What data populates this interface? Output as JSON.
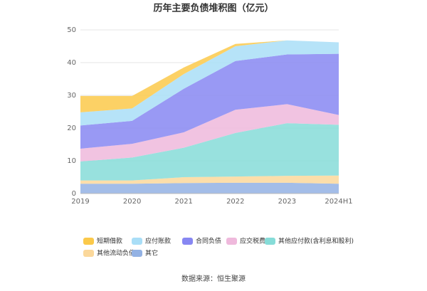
{
  "chart_data": {
    "type": "stacked-area",
    "title": "历年主要负债堆积图（亿元）",
    "categories": [
      "2019",
      "2020",
      "2021",
      "2022",
      "2023",
      "2024H1"
    ],
    "series": [
      {
        "name": "短期借款",
        "color": "#fbc94a",
        "values": [
          5,
          3.8,
          2,
          0.7,
          0,
          0
        ]
      },
      {
        "name": "应付账款",
        "color": "#a9def7",
        "values": [
          4,
          3.8,
          4.5,
          4.5,
          4.3,
          3.5
        ]
      },
      {
        "name": "合同负债",
        "color": "#8787f2",
        "values": [
          7.1,
          7,
          13.3,
          14.9,
          15.2,
          18.7
        ]
      },
      {
        "name": "应交税费",
        "color": "#efb9dc",
        "values": [
          3.9,
          4.2,
          4.7,
          7.1,
          5.8,
          3
        ]
      },
      {
        "name": "其他应付款(含利息和股利)",
        "color": "#86dcd8",
        "values": [
          5.8,
          7,
          9,
          13.3,
          16.1,
          15.5
        ]
      },
      {
        "name": "其他流动负债",
        "color": "#fbd89b",
        "values": [
          1,
          1,
          1.8,
          1.9,
          2.1,
          2.5
        ]
      },
      {
        "name": "其它",
        "color": "#93b2e4",
        "values": [
          3,
          3,
          3.2,
          3.3,
          3.3,
          3
        ]
      }
    ],
    "ylim": [
      0,
      50
    ],
    "yticks": [
      0,
      10,
      20,
      30,
      40,
      50
    ],
    "grid": true,
    "source": "数据来源：恒生聚源"
  }
}
